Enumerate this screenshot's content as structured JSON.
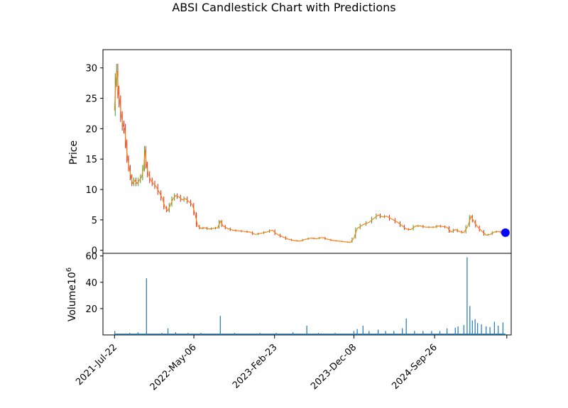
{
  "chart_data": {
    "type": "candlestick",
    "title": "ABSI Candlestick Chart with Predictions",
    "price_panel": {
      "ylabel": "Price",
      "ylim": [
        -0.5,
        33
      ],
      "yticks": [
        0,
        5,
        10,
        15,
        20,
        25,
        30
      ],
      "grid": false,
      "series": [
        {
          "name": "close",
          "color": "#ff7f0e",
          "points": [
            [
              "2021-07-22",
              23.0
            ],
            [
              "2021-07-27",
              28.0
            ],
            [
              "2021-08-01",
              29.5
            ],
            [
              "2021-08-05",
              26.0
            ],
            [
              "2021-08-10",
              24.5
            ],
            [
              "2021-08-16",
              22.0
            ],
            [
              "2021-08-22",
              20.5
            ],
            [
              "2021-08-28",
              20.0
            ],
            [
              "2021-09-02",
              17.5
            ],
            [
              "2021-09-08",
              15.0
            ],
            [
              "2021-09-14",
              13.5
            ],
            [
              "2021-09-20",
              12.0
            ],
            [
              "2021-09-26",
              11.0
            ],
            [
              "2021-10-04",
              11.5
            ],
            [
              "2021-10-12",
              11.0
            ],
            [
              "2021-10-20",
              11.5
            ],
            [
              "2021-10-28",
              12.0
            ],
            [
              "2021-11-05",
              13.5
            ],
            [
              "2021-11-10",
              16.5
            ],
            [
              "2021-11-15",
              14.0
            ],
            [
              "2021-11-22",
              12.5
            ],
            [
              "2021-12-01",
              11.5
            ],
            [
              "2021-12-10",
              11.0
            ],
            [
              "2021-12-20",
              10.5
            ],
            [
              "2022-01-01",
              9.5
            ],
            [
              "2022-01-12",
              8.5
            ],
            [
              "2022-01-22",
              7.0
            ],
            [
              "2022-02-01",
              6.5
            ],
            [
              "2022-02-10",
              7.5
            ],
            [
              "2022-02-20",
              8.5
            ],
            [
              "2022-03-01",
              9.0
            ],
            [
              "2022-03-12",
              8.8
            ],
            [
              "2022-03-25",
              8.3
            ],
            [
              "2022-04-06",
              8.5
            ],
            [
              "2022-04-18",
              8.0
            ],
            [
              "2022-05-01",
              7.5
            ],
            [
              "2022-05-10",
              6.0
            ],
            [
              "2022-05-20",
              4.0
            ],
            [
              "2022-06-01",
              3.6
            ],
            [
              "2022-06-15",
              3.7
            ],
            [
              "2022-07-01",
              3.5
            ],
            [
              "2022-07-15",
              3.6
            ],
            [
              "2022-08-01",
              3.7
            ],
            [
              "2022-08-10",
              4.8
            ],
            [
              "2022-08-20",
              4.0
            ],
            [
              "2022-09-05",
              3.6
            ],
            [
              "2022-09-25",
              3.3
            ],
            [
              "2022-10-15",
              3.2
            ],
            [
              "2022-11-05",
              3.1
            ],
            [
              "2022-11-25",
              3.0
            ],
            [
              "2022-12-15",
              2.6
            ],
            [
              "2023-01-05",
              2.8
            ],
            [
              "2023-01-25",
              3.0
            ],
            [
              "2023-02-15",
              3.3
            ],
            [
              "2023-03-05",
              2.6
            ],
            [
              "2023-03-25",
              2.2
            ],
            [
              "2023-04-15",
              1.8
            ],
            [
              "2023-05-05",
              1.6
            ],
            [
              "2023-05-25",
              1.5
            ],
            [
              "2023-06-15",
              1.8
            ],
            [
              "2023-07-05",
              2.0
            ],
            [
              "2023-07-25",
              1.9
            ],
            [
              "2023-08-15",
              2.1
            ],
            [
              "2023-09-05",
              1.8
            ],
            [
              "2023-09-25",
              1.6
            ],
            [
              "2023-10-15",
              1.5
            ],
            [
              "2023-11-05",
              1.4
            ],
            [
              "2023-11-25",
              1.3
            ],
            [
              "2023-12-08",
              2.0
            ],
            [
              "2023-12-20",
              3.6
            ],
            [
              "2024-01-10",
              4.2
            ],
            [
              "2024-02-01",
              4.6
            ],
            [
              "2024-02-20",
              5.3
            ],
            [
              "2024-03-05",
              5.8
            ],
            [
              "2024-03-20",
              5.5
            ],
            [
              "2024-04-05",
              5.6
            ],
            [
              "2024-04-25",
              5.1
            ],
            [
              "2024-05-15",
              4.6
            ],
            [
              "2024-06-01",
              4.0
            ],
            [
              "2024-06-15",
              3.5
            ],
            [
              "2024-07-01",
              3.4
            ],
            [
              "2024-07-20",
              4.0
            ],
            [
              "2024-08-05",
              4.0
            ],
            [
              "2024-08-25",
              3.8
            ],
            [
              "2024-09-15",
              3.8
            ],
            [
              "2024-09-26",
              3.8
            ],
            [
              "2024-10-10",
              4.0
            ],
            [
              "2024-10-25",
              3.9
            ],
            [
              "2024-11-10",
              3.8
            ],
            [
              "2024-11-25",
              3.0
            ],
            [
              "2024-12-10",
              3.4
            ],
            [
              "2024-12-25",
              3.1
            ],
            [
              "2025-01-10",
              2.9
            ],
            [
              "2025-01-25",
              4.0
            ],
            [
              "2025-02-05",
              5.6
            ],
            [
              "2025-02-15",
              4.8
            ],
            [
              "2025-02-28",
              3.9
            ],
            [
              "2025-03-15",
              3.2
            ],
            [
              "2025-04-01",
              2.5
            ],
            [
              "2025-04-15",
              2.6
            ],
            [
              "2025-05-01",
              3.0
            ],
            [
              "2025-05-15",
              3.1
            ],
            [
              "2025-06-01",
              2.9
            ],
            [
              "2025-06-10",
              2.9
            ]
          ]
        }
      ],
      "prediction_marker": {
        "date": "2025-06-10",
        "value": 2.9,
        "color": "#0000ff"
      }
    },
    "volume_panel": {
      "ylabel": "Volume",
      "unit_label": "10",
      "unit_exponent": "6",
      "ylim": [
        0,
        62
      ],
      "yticks": [
        20,
        40,
        60
      ],
      "color": "#1f77b4",
      "spikes": [
        [
          "2021-07-23",
          3.0
        ],
        [
          "2021-09-15",
          1.5
        ],
        [
          "2021-10-15",
          2.0
        ],
        [
          "2021-11-15",
          43.0
        ],
        [
          "2022-01-10",
          1.5
        ],
        [
          "2022-02-01",
          5.0
        ],
        [
          "2022-03-01",
          2.0
        ],
        [
          "2022-04-15",
          1.5
        ],
        [
          "2022-06-01",
          1.5
        ],
        [
          "2022-08-10",
          14.5
        ],
        [
          "2022-10-01",
          1.5
        ],
        [
          "2023-01-01",
          1.5
        ],
        [
          "2023-03-01",
          1.5
        ],
        [
          "2023-05-01",
          2.0
        ],
        [
          "2023-06-20",
          7.0
        ],
        [
          "2023-08-01",
          1.5
        ],
        [
          "2023-10-01",
          1.5
        ],
        [
          "2023-12-08",
          3.0
        ],
        [
          "2023-12-20",
          4.5
        ],
        [
          "2024-01-10",
          7.0
        ],
        [
          "2024-02-01",
          3.0
        ],
        [
          "2024-03-05",
          4.0
        ],
        [
          "2024-04-01",
          3.0
        ],
        [
          "2024-05-01",
          3.0
        ],
        [
          "2024-06-01",
          5.0
        ],
        [
          "2024-06-15",
          12.5
        ],
        [
          "2024-07-15",
          3.0
        ],
        [
          "2024-08-15",
          3.0
        ],
        [
          "2024-09-15",
          3.0
        ],
        [
          "2024-10-15",
          3.0
        ],
        [
          "2024-11-10",
          5.0
        ],
        [
          "2024-12-10",
          5.5
        ],
        [
          "2024-12-20",
          6.5
        ],
        [
          "2025-01-10",
          7.5
        ],
        [
          "2025-01-22",
          59.0
        ],
        [
          "2025-02-01",
          22.0
        ],
        [
          "2025-02-10",
          11.0
        ],
        [
          "2025-02-20",
          12.0
        ],
        [
          "2025-03-01",
          9.0
        ],
        [
          "2025-03-15",
          8.0
        ],
        [
          "2025-04-01",
          6.5
        ],
        [
          "2025-04-15",
          6.0
        ],
        [
          "2025-05-01",
          10.0
        ],
        [
          "2025-05-15",
          7.0
        ],
        [
          "2025-06-01",
          9.5
        ]
      ]
    },
    "x_axis": {
      "type": "date",
      "range": [
        "2021-06-10",
        "2025-07-01"
      ],
      "tick_dates": [
        "2021-07-22",
        "2022-05-06",
        "2023-02-23",
        "2023-12-08",
        "2024-09-26",
        "2025-06-15"
      ],
      "tick_labels": [
        "2021-Jul-22",
        "2022-May-06",
        "2023-Feb-23",
        "2023-Dec-08",
        "2024-Sep-26",
        ""
      ]
    }
  }
}
